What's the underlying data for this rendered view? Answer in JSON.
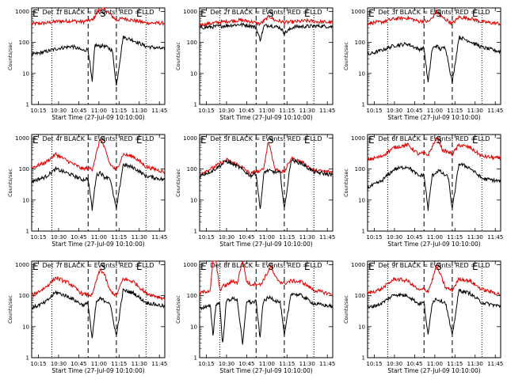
{
  "chart_data": {
    "type": "line",
    "layout": {
      "rows": 3,
      "cols": 3
    },
    "shared": {
      "ylabel": "Counts/sec",
      "xlabel": "Start Time (27-Jul-09 10:10:00)",
      "x_ticks": [
        "10:15",
        "10:30",
        "10:45",
        "11:00",
        "11:15",
        "11:30",
        "11:45"
      ],
      "x_tick_minutes": [
        15,
        30,
        45,
        60,
        75,
        90,
        105
      ],
      "xlim_minutes": [
        10,
        109
      ],
      "y_ticks": [
        "1",
        "10",
        "100",
        "1000"
      ],
      "y_scale": "log",
      "ylim": [
        1,
        1300
      ],
      "series": [
        {
          "name": "Events",
          "color": "#000000"
        },
        {
          "name": "LLD",
          "color": "#e00000"
        }
      ],
      "markers": [
        {
          "label": "E",
          "minute": 10
        },
        {
          "label": "S",
          "minute": 63
        },
        {
          "label": "E",
          "minute": 90
        }
      ],
      "dashed_lines_minutes": [
        52,
        73
      ],
      "dotted_lines_minutes": [
        25,
        95
      ]
    },
    "panels": [
      {
        "title": "Det 1f BLACK = Events, RED = LLD",
        "x": [
          10,
          20,
          30,
          40,
          48,
          52,
          55,
          57,
          60,
          63,
          66,
          70,
          73,
          78,
          85,
          95,
          105,
          109
        ],
        "events": [
          40,
          50,
          65,
          75,
          55,
          60,
          5,
          85,
          75,
          80,
          70,
          55,
          4,
          150,
          120,
          75,
          65,
          60
        ],
        "lld": [
          400,
          420,
          480,
          500,
          460,
          520,
          520,
          700,
          1100,
          1300,
          1000,
          700,
          520,
          600,
          520,
          430,
          420,
          420
        ]
      },
      {
        "title": "Det 2f BLACK = Events, RED = LLD",
        "x": [
          10,
          20,
          30,
          40,
          48,
          52,
          55,
          58,
          62,
          66,
          70,
          73,
          80,
          90,
          100,
          109
        ],
        "events": [
          300,
          320,
          350,
          380,
          350,
          300,
          120,
          340,
          360,
          330,
          300,
          200,
          320,
          330,
          340,
          320
        ],
        "lld": [
          370,
          420,
          480,
          520,
          480,
          420,
          400,
          500,
          700,
          520,
          480,
          440,
          460,
          500,
          460,
          440
        ]
      },
      {
        "title": "Det 3f BLACK = Events, RED = LLD",
        "x": [
          10,
          20,
          30,
          40,
          48,
          52,
          55,
          58,
          61,
          64,
          68,
          73,
          78,
          86,
          95,
          109
        ],
        "events": [
          40,
          55,
          80,
          90,
          60,
          65,
          5,
          60,
          80,
          60,
          70,
          5,
          150,
          110,
          70,
          50
        ],
        "lld": [
          420,
          450,
          580,
          620,
          480,
          500,
          460,
          600,
          1000,
          700,
          560,
          400,
          650,
          600,
          460,
          400
        ]
      },
      {
        "title": "Det 4f BLACK = Events, RED = LLD",
        "x": [
          10,
          20,
          28,
          38,
          48,
          52,
          55,
          58,
          61,
          64,
          68,
          73,
          78,
          86,
          95,
          109
        ],
        "events": [
          40,
          55,
          100,
          70,
          45,
          50,
          5,
          60,
          80,
          55,
          55,
          5,
          140,
          110,
          60,
          45
        ],
        "lld": [
          110,
          160,
          300,
          170,
          100,
          110,
          100,
          300,
          1000,
          500,
          150,
          90,
          300,
          250,
          120,
          80
        ]
      },
      {
        "title": "Det 5f BLACK = Events, RED = LLD",
        "x": [
          10,
          20,
          30,
          40,
          48,
          52,
          55,
          58,
          61,
          63,
          66,
          70,
          73,
          78,
          86,
          95,
          109
        ],
        "events": [
          60,
          90,
          180,
          110,
          60,
          75,
          5,
          80,
          90,
          85,
          80,
          75,
          5,
          200,
          150,
          80,
          65
        ],
        "lld": [
          70,
          110,
          200,
          130,
          70,
          85,
          80,
          120,
          800,
          400,
          100,
          85,
          80,
          220,
          170,
          90,
          80
        ]
      },
      {
        "title": "Det 6f BLACK = Events, RED = LLD",
        "x": [
          10,
          20,
          30,
          40,
          48,
          52,
          55,
          58,
          61,
          63,
          66,
          70,
          73,
          78,
          86,
          95,
          109
        ],
        "events": [
          25,
          40,
          100,
          120,
          60,
          65,
          5,
          60,
          80,
          90,
          70,
          55,
          5,
          150,
          110,
          50,
          40
        ],
        "lld": [
          200,
          250,
          500,
          600,
          300,
          330,
          280,
          500,
          1000,
          800,
          400,
          350,
          300,
          600,
          500,
          260,
          220
        ]
      },
      {
        "title": "Det 7f BLACK = Events, RED = LLD",
        "x": [
          10,
          20,
          28,
          38,
          48,
          52,
          55,
          58,
          61,
          64,
          68,
          73,
          78,
          86,
          95,
          109
        ],
        "events": [
          40,
          60,
          130,
          90,
          50,
          55,
          4,
          60,
          80,
          70,
          60,
          5,
          150,
          120,
          60,
          45
        ],
        "lld": [
          100,
          180,
          380,
          250,
          110,
          110,
          100,
          300,
          700,
          500,
          150,
          100,
          350,
          280,
          120,
          80
        ]
      },
      {
        "title": "Det 8f BLACK = Events, RED = LLD",
        "x": [
          10,
          18,
          20,
          22,
          25,
          27,
          30,
          35,
          38,
          42,
          45,
          48,
          52,
          55,
          57,
          60,
          63,
          66,
          70,
          73,
          78,
          86,
          95,
          109
        ],
        "events": [
          40,
          45,
          5,
          50,
          60,
          2.5,
          70,
          80,
          75,
          2.5,
          70,
          60,
          65,
          4,
          60,
          80,
          90,
          70,
          60,
          5,
          120,
          100,
          55,
          45
        ],
        "lld": [
          120,
          150,
          1500,
          1500,
          150,
          200,
          220,
          300,
          250,
          1500,
          280,
          230,
          250,
          220,
          300,
          500,
          900,
          400,
          280,
          250,
          300,
          280,
          150,
          110
        ]
      },
      {
        "title": "Det 9f BLACK = Events, RED = LLD",
        "x": [
          10,
          20,
          30,
          40,
          48,
          52,
          55,
          58,
          61,
          64,
          68,
          73,
          78,
          86,
          95,
          109
        ],
        "events": [
          40,
          55,
          110,
          100,
          55,
          60,
          5,
          60,
          80,
          70,
          60,
          5,
          150,
          120,
          60,
          45
        ],
        "lld": [
          120,
          160,
          350,
          300,
          150,
          160,
          140,
          300,
          900,
          500,
          180,
          150,
          350,
          300,
          160,
          110
        ]
      }
    ]
  }
}
